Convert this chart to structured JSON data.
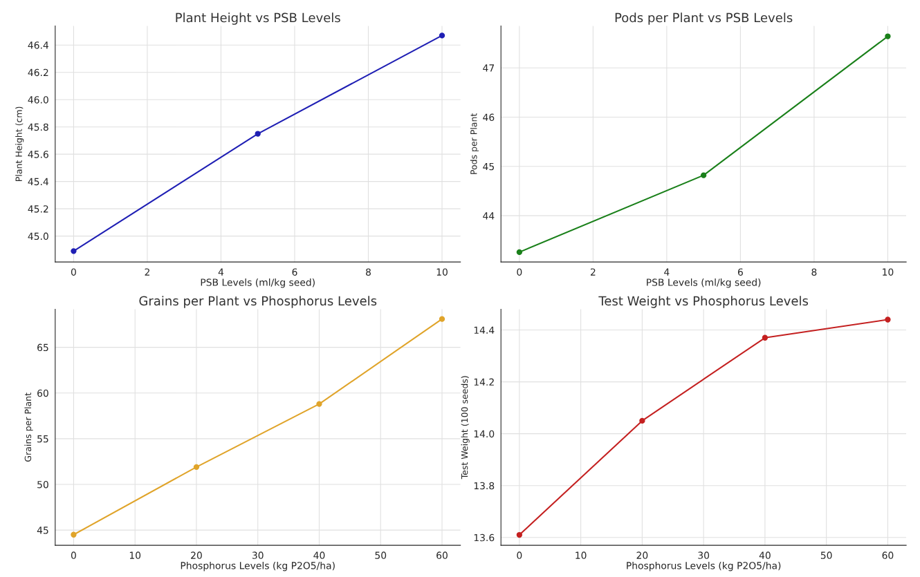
{
  "chart_data": [
    {
      "type": "line",
      "title": "Plant Height vs PSB Levels",
      "xlabel": "PSB Levels (ml/kg seed)",
      "ylabel": "Plant Height (cm)",
      "x": [
        0,
        5,
        10
      ],
      "series": [
        {
          "color": "#1f1fb4",
          "values": [
            44.89,
            45.75,
            46.47
          ]
        }
      ],
      "xlim": [
        -0.5,
        10.5
      ],
      "xticks": [
        0,
        2,
        4,
        6,
        8,
        10
      ],
      "ylim": [
        44.81,
        46.54
      ],
      "yticks": [
        {
          "value": 45.0,
          "label": "45.0"
        },
        45.2,
        45.4,
        45.6,
        45.8,
        {
          "value": 46.0,
          "label": "46.0"
        },
        46.2,
        46.4
      ],
      "grid": true,
      "marker": "circle"
    },
    {
      "type": "line",
      "title": "Pods per Plant vs PSB Levels",
      "xlabel": "PSB Levels (ml/kg seed)",
      "ylabel": "Pods per Plant",
      "x": [
        0,
        5,
        10
      ],
      "series": [
        {
          "color": "#1a801a",
          "values": [
            43.26,
            44.82,
            47.64
          ]
        }
      ],
      "xlim": [
        -0.5,
        10.5
      ],
      "xticks": [
        0,
        2,
        4,
        6,
        8,
        10
      ],
      "ylim": [
        43.06,
        47.85
      ],
      "yticks": [
        44,
        45,
        46,
        47
      ],
      "grid": true,
      "marker": "circle"
    },
    {
      "type": "line",
      "title": "Grains per Plant vs Phosphorus Levels",
      "xlabel": "Phosphorus Levels (kg P2O5/ha)",
      "ylabel": "Grains per Plant",
      "x": [
        0,
        20,
        40,
        60
      ],
      "series": [
        {
          "color": "#e0a42a",
          "values": [
            44.5,
            51.9,
            58.8,
            68.1
          ]
        }
      ],
      "xlim": [
        -3,
        63
      ],
      "xticks": [
        0,
        10,
        20,
        30,
        40,
        50,
        60
      ],
      "ylim": [
        43.34,
        69.17
      ],
      "yticks": [
        45,
        50,
        55,
        60,
        65
      ],
      "grid": true,
      "marker": "circle"
    },
    {
      "type": "line",
      "title": "Test Weight vs Phosphorus Levels",
      "xlabel": "Phosphorus Levels (kg P2O5/ha)",
      "ylabel": "Test Weight (100 seeds)",
      "x": [
        0,
        20,
        40,
        60
      ],
      "series": [
        {
          "color": "#c42020",
          "values": [
            13.61,
            14.05,
            14.37,
            14.44
          ]
        }
      ],
      "xlim": [
        -3,
        63
      ],
      "xticks": [
        0,
        10,
        20,
        30,
        40,
        50,
        60
      ],
      "ylim": [
        13.57,
        14.48
      ],
      "yticks": [
        13.6,
        13.8,
        {
          "value": 14.0,
          "label": "14.0"
        },
        14.2,
        14.4
      ],
      "grid": true,
      "marker": "circle"
    }
  ]
}
